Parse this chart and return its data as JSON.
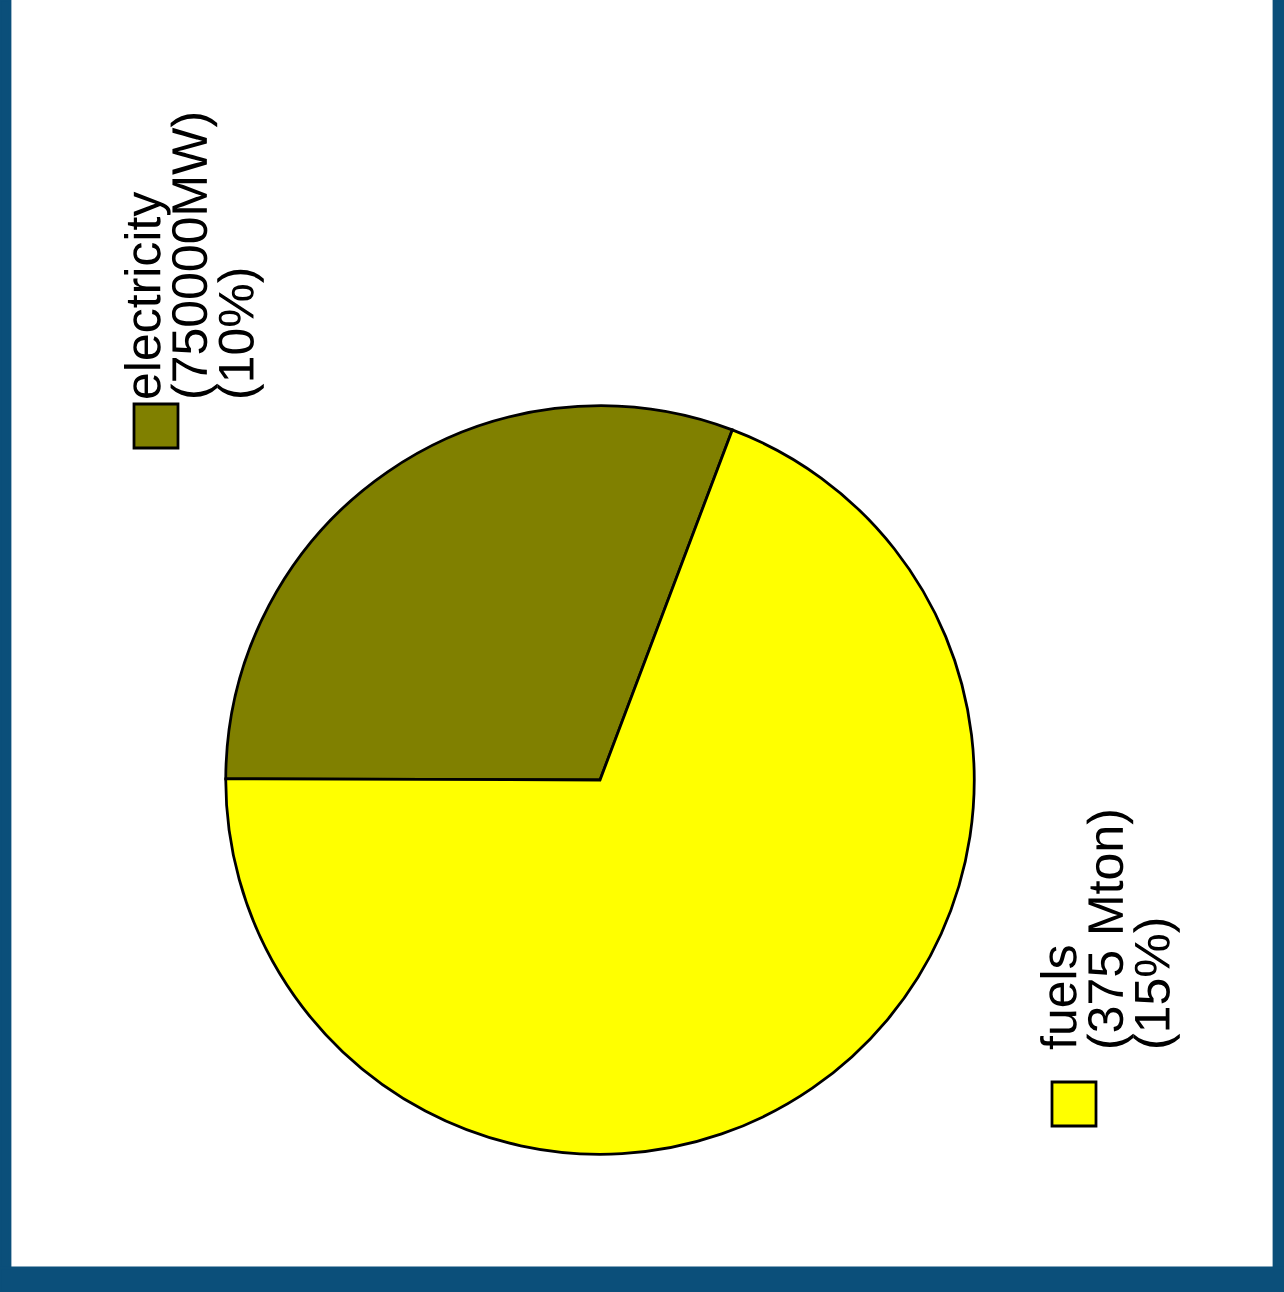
{
  "chart_data": {
    "type": "pie",
    "categories": [
      "electricity (750000MW) (10%)",
      "fuels (375 Mton) (15%)"
    ],
    "values": [
      30.7,
      69.3
    ],
    "colors": [
      "#808000",
      "#ffff00"
    ]
  }
}
